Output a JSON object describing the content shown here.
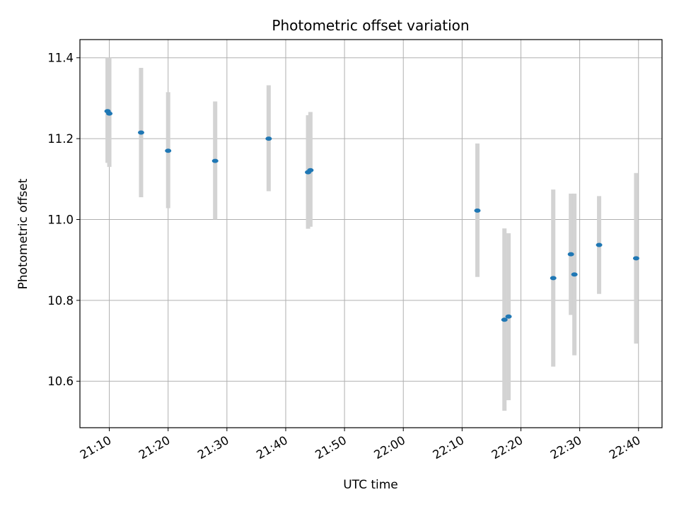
{
  "chart_data": {
    "type": "scatter",
    "title": "Photometric offset variation",
    "xlabel": "UTC time",
    "ylabel": "Photometric offset",
    "x_axis_type": "time",
    "xlim": [
      "21:05",
      "22:44"
    ],
    "ylim": [
      10.485,
      11.445
    ],
    "x_ticks": [
      "21:10",
      "21:20",
      "21:30",
      "21:40",
      "21:50",
      "22:00",
      "22:10",
      "22:20",
      "22:30",
      "22:40"
    ],
    "y_ticks": [
      10.6,
      10.8,
      11.0,
      11.2,
      11.4
    ],
    "grid": true,
    "colors": {
      "point": "#1f77b4",
      "errorbar": "#d3d3d3",
      "grid": "#b0b0b0"
    },
    "points": [
      {
        "x": "21:09:42",
        "y": 11.268,
        "err_low": 11.14,
        "err_high": 11.4
      },
      {
        "x": "21:10:00",
        "y": 11.262,
        "err_low": 11.13,
        "err_high": 11.4
      },
      {
        "x": "21:15:24",
        "y": 11.215,
        "err_low": 11.055,
        "err_high": 11.375
      },
      {
        "x": "21:20:00",
        "y": 11.17,
        "err_low": 11.028,
        "err_high": 11.315
      },
      {
        "x": "21:28:00",
        "y": 11.145,
        "err_low": 11.0,
        "err_high": 11.292
      },
      {
        "x": "21:37:06",
        "y": 11.2,
        "err_low": 11.07,
        "err_high": 11.332
      },
      {
        "x": "21:43:48",
        "y": 11.117,
        "err_low": 10.977,
        "err_high": 11.258
      },
      {
        "x": "21:44:12",
        "y": 11.122,
        "err_low": 10.982,
        "err_high": 11.266
      },
      {
        "x": "22:12:36",
        "y": 11.022,
        "err_low": 10.858,
        "err_high": 11.188
      },
      {
        "x": "22:17:12",
        "y": 10.752,
        "err_low": 10.527,
        "err_high": 10.978
      },
      {
        "x": "22:17:54",
        "y": 10.76,
        "err_low": 10.553,
        "err_high": 10.966
      },
      {
        "x": "22:25:30",
        "y": 10.855,
        "err_low": 10.636,
        "err_high": 11.074
      },
      {
        "x": "22:28:30",
        "y": 10.914,
        "err_low": 10.764,
        "err_high": 11.064
      },
      {
        "x": "22:29:06",
        "y": 10.864,
        "err_low": 10.664,
        "err_high": 11.064
      },
      {
        "x": "22:33:18",
        "y": 10.937,
        "err_low": 10.816,
        "err_high": 11.058
      },
      {
        "x": "22:39:36",
        "y": 10.904,
        "err_low": 10.693,
        "err_high": 11.115
      }
    ]
  }
}
